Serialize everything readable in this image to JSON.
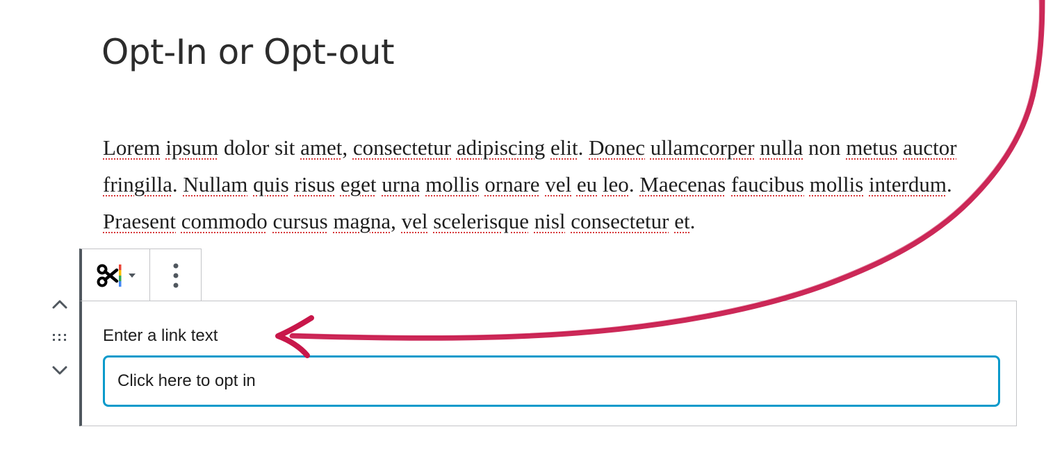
{
  "post": {
    "title": "Opt-In or Opt-out"
  },
  "paragraph": {
    "words": [
      {
        "t": "Lorem",
        "sp": true
      },
      {
        "t": " "
      },
      {
        "t": "ipsum",
        "sp": true
      },
      {
        "t": " dolor sit "
      },
      {
        "t": "amet",
        "sp": true
      },
      {
        "t": ", "
      },
      {
        "t": "consectetur",
        "sp": true
      },
      {
        "t": " "
      },
      {
        "t": "adipiscing",
        "sp": true
      },
      {
        "t": " "
      },
      {
        "t": "elit",
        "sp": true
      },
      {
        "t": ". "
      },
      {
        "t": "Donec",
        "sp": true
      },
      {
        "t": " "
      },
      {
        "t": "ullamcorper",
        "sp": true
      },
      {
        "t": " "
      },
      {
        "t": "nulla",
        "sp": true
      },
      {
        "t": " non "
      },
      {
        "t": "metus",
        "sp": true
      },
      {
        "t": " "
      },
      {
        "t": "auctor",
        "sp": true
      },
      {
        "t": " "
      },
      {
        "t": "fringilla",
        "sp": true
      },
      {
        "t": ". "
      },
      {
        "t": "Nullam",
        "sp": true
      },
      {
        "t": " "
      },
      {
        "t": "quis",
        "sp": true
      },
      {
        "t": " "
      },
      {
        "t": "risus",
        "sp": true
      },
      {
        "t": " "
      },
      {
        "t": "eget",
        "sp": true
      },
      {
        "t": " "
      },
      {
        "t": "urna",
        "sp": true
      },
      {
        "t": " "
      },
      {
        "t": "mollis",
        "sp": true
      },
      {
        "t": " "
      },
      {
        "t": "ornare",
        "sp": true
      },
      {
        "t": " "
      },
      {
        "t": "vel",
        "sp": true
      },
      {
        "t": " "
      },
      {
        "t": "eu",
        "sp": true
      },
      {
        "t": " "
      },
      {
        "t": "leo",
        "sp": true
      },
      {
        "t": ". "
      },
      {
        "t": "Maecenas",
        "sp": true
      },
      {
        "t": " "
      },
      {
        "t": "faucibus",
        "sp": true
      },
      {
        "t": " "
      },
      {
        "t": "mollis",
        "sp": true
      },
      {
        "t": " "
      },
      {
        "t": "interdum",
        "sp": true
      },
      {
        "t": ". "
      },
      {
        "t": "Praesent",
        "sp": true
      },
      {
        "t": " "
      },
      {
        "t": "commodo",
        "sp": true
      },
      {
        "t": " "
      },
      {
        "t": "cursus",
        "sp": true
      },
      {
        "t": " "
      },
      {
        "t": "magna",
        "sp": true
      },
      {
        "t": ", "
      },
      {
        "t": "vel",
        "sp": true
      },
      {
        "t": " "
      },
      {
        "t": "scelerisque",
        "sp": true
      },
      {
        "t": " "
      },
      {
        "t": "nisl",
        "sp": true
      },
      {
        "t": " "
      },
      {
        "t": "consectetur",
        "sp": true
      },
      {
        "t": " "
      },
      {
        "t": "et",
        "sp": true
      },
      {
        "t": "."
      }
    ]
  },
  "block": {
    "label": "Enter a link text",
    "input_value": "Click here to opt in"
  },
  "icons": {
    "switcher": "scissors-icon",
    "switcher_arrow": "caret-down-icon",
    "more": "more-vertical-icon",
    "move_up": "chevron-up-icon",
    "drag": "drag-handle-icon",
    "move_down": "chevron-down-icon"
  },
  "colors": {
    "focus_border": "#0a9acb",
    "annotation_arrow": "#c8174a",
    "spellcheck": "#d63638"
  }
}
